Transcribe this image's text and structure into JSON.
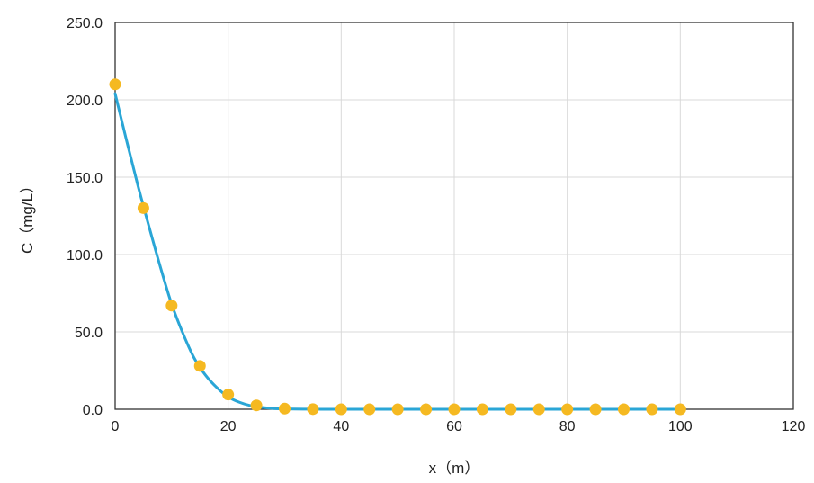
{
  "chart_data": {
    "type": "scatter",
    "title": "",
    "xlabel": "x（m）",
    "ylabel": "C（mg/L）",
    "xlim": [
      0,
      120
    ],
    "ylim": [
      0,
      250
    ],
    "xticks": [
      0,
      20,
      40,
      60,
      80,
      100,
      120
    ],
    "xtick_labels": [
      "0",
      "20",
      "40",
      "60",
      "80",
      "100",
      "120"
    ],
    "yticks": [
      0,
      50,
      100,
      150,
      200,
      250
    ],
    "ytick_labels": [
      "0.0",
      "50.0",
      "100.0",
      "150.0",
      "200.0",
      "250.0"
    ],
    "grid": true,
    "legend": "none",
    "series": [
      {
        "kind": "points",
        "color": "#f5b921",
        "x": [
          0,
          5,
          10,
          15,
          20,
          25,
          30,
          35,
          40,
          45,
          50,
          55,
          60,
          65,
          70,
          75,
          80,
          85,
          90,
          95,
          100
        ],
        "y": [
          210,
          130,
          67,
          28,
          9.5,
          2.5,
          0.4,
          0.1,
          0,
          0,
          0,
          0,
          0,
          0,
          0,
          0,
          0,
          0,
          0,
          0,
          0
        ]
      },
      {
        "kind": "line",
        "color": "#2aa6d6",
        "x": [
          0,
          2,
          4,
          6,
          8,
          10,
          12,
          14,
          16,
          18,
          20,
          22,
          24,
          26,
          28,
          30,
          35,
          40,
          50,
          60,
          70,
          80,
          90,
          100
        ],
        "y": [
          204,
          174,
          145,
          118,
          92,
          68,
          49,
          33,
          22,
          14,
          8,
          4.5,
          2.3,
          1.2,
          0.5,
          0.2,
          0.05,
          0,
          0,
          0,
          0,
          0,
          0,
          0
        ]
      }
    ]
  }
}
